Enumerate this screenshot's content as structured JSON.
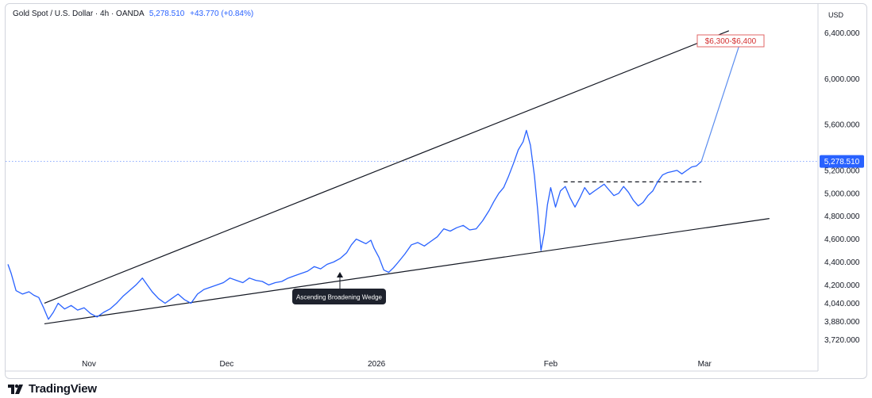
{
  "header": {
    "symbol": "Gold Spot / U.S. Dollar · 4h · OANDA",
    "last": "5,278.510",
    "change": "+43.770 (+0.84%)",
    "currency": "USD"
  },
  "footer": {
    "brand": "TradingView"
  },
  "chart_data": {
    "type": "line",
    "ylim": [
      3600,
      6550
    ],
    "x_ticks": [
      {
        "label": "Nov",
        "t": 0.1
      },
      {
        "label": "Dec",
        "t": 0.27
      },
      {
        "label": "2026",
        "t": 0.455
      },
      {
        "label": "Feb",
        "t": 0.67
      },
      {
        "label": "Mar",
        "t": 0.86
      }
    ],
    "y_ticks": [
      3720,
      3880,
      4040,
      4200,
      4400,
      4600,
      4800,
      5000,
      5200,
      5600,
      6000,
      6400
    ],
    "y_tick_labels": [
      "3,720.000",
      "3,880.000",
      "4,040.000",
      "4,200.000",
      "4,400.000",
      "4,600.000",
      "4,800.000",
      "5,000.000",
      "5,200.000",
      "5,600.000",
      "6,000.000",
      "6,400.000"
    ],
    "series": [
      {
        "color": "#2962ff",
        "points": [
          [
            0.0,
            4380
          ],
          [
            0.004,
            4300
          ],
          [
            0.01,
            4150
          ],
          [
            0.018,
            4120
          ],
          [
            0.026,
            4140
          ],
          [
            0.032,
            4110
          ],
          [
            0.038,
            4090
          ],
          [
            0.044,
            4000
          ],
          [
            0.05,
            3900
          ],
          [
            0.056,
            3960
          ],
          [
            0.062,
            4040
          ],
          [
            0.07,
            3990
          ],
          [
            0.078,
            4020
          ],
          [
            0.086,
            3980
          ],
          [
            0.094,
            4000
          ],
          [
            0.102,
            3950
          ],
          [
            0.11,
            3920
          ],
          [
            0.118,
            3960
          ],
          [
            0.126,
            3990
          ],
          [
            0.134,
            4040
          ],
          [
            0.142,
            4100
          ],
          [
            0.15,
            4150
          ],
          [
            0.158,
            4200
          ],
          [
            0.166,
            4260
          ],
          [
            0.172,
            4200
          ],
          [
            0.178,
            4140
          ],
          [
            0.186,
            4080
          ],
          [
            0.194,
            4040
          ],
          [
            0.202,
            4080
          ],
          [
            0.21,
            4120
          ],
          [
            0.218,
            4070
          ],
          [
            0.226,
            4040
          ],
          [
            0.234,
            4120
          ],
          [
            0.242,
            4160
          ],
          [
            0.25,
            4180
          ],
          [
            0.258,
            4200
          ],
          [
            0.266,
            4220
          ],
          [
            0.274,
            4260
          ],
          [
            0.282,
            4240
          ],
          [
            0.29,
            4220
          ],
          [
            0.298,
            4260
          ],
          [
            0.306,
            4240
          ],
          [
            0.314,
            4230
          ],
          [
            0.322,
            4200
          ],
          [
            0.33,
            4220
          ],
          [
            0.338,
            4230
          ],
          [
            0.346,
            4260
          ],
          [
            0.354,
            4280
          ],
          [
            0.362,
            4300
          ],
          [
            0.37,
            4320
          ],
          [
            0.378,
            4360
          ],
          [
            0.386,
            4340
          ],
          [
            0.394,
            4380
          ],
          [
            0.402,
            4400
          ],
          [
            0.41,
            4430
          ],
          [
            0.418,
            4480
          ],
          [
            0.424,
            4550
          ],
          [
            0.43,
            4600
          ],
          [
            0.436,
            4580
          ],
          [
            0.442,
            4560
          ],
          [
            0.448,
            4590
          ],
          [
            0.452,
            4520
          ],
          [
            0.458,
            4440
          ],
          [
            0.464,
            4330
          ],
          [
            0.47,
            4310
          ],
          [
            0.476,
            4350
          ],
          [
            0.482,
            4400
          ],
          [
            0.49,
            4470
          ],
          [
            0.498,
            4550
          ],
          [
            0.506,
            4570
          ],
          [
            0.514,
            4540
          ],
          [
            0.522,
            4580
          ],
          [
            0.53,
            4620
          ],
          [
            0.538,
            4690
          ],
          [
            0.546,
            4670
          ],
          [
            0.554,
            4700
          ],
          [
            0.562,
            4720
          ],
          [
            0.57,
            4680
          ],
          [
            0.578,
            4690
          ],
          [
            0.586,
            4760
          ],
          [
            0.594,
            4850
          ],
          [
            0.6,
            4930
          ],
          [
            0.606,
            5000
          ],
          [
            0.612,
            5050
          ],
          [
            0.618,
            5150
          ],
          [
            0.624,
            5260
          ],
          [
            0.63,
            5380
          ],
          [
            0.636,
            5450
          ],
          [
            0.64,
            5550
          ],
          [
            0.645,
            5420
          ],
          [
            0.65,
            5150
          ],
          [
            0.654,
            4850
          ],
          [
            0.658,
            4500
          ],
          [
            0.662,
            4650
          ],
          [
            0.666,
            4900
          ],
          [
            0.67,
            5050
          ],
          [
            0.676,
            4880
          ],
          [
            0.682,
            5020
          ],
          [
            0.688,
            5060
          ],
          [
            0.694,
            4960
          ],
          [
            0.7,
            4880
          ],
          [
            0.706,
            4960
          ],
          [
            0.712,
            5050
          ],
          [
            0.718,
            4990
          ],
          [
            0.724,
            5020
          ],
          [
            0.73,
            5050
          ],
          [
            0.736,
            5080
          ],
          [
            0.742,
            5030
          ],
          [
            0.748,
            4980
          ],
          [
            0.754,
            5000
          ],
          [
            0.76,
            5060
          ],
          [
            0.766,
            5010
          ],
          [
            0.772,
            4940
          ],
          [
            0.778,
            4890
          ],
          [
            0.784,
            4920
          ],
          [
            0.79,
            4980
          ],
          [
            0.796,
            5020
          ],
          [
            0.802,
            5100
          ],
          [
            0.808,
            5160
          ],
          [
            0.814,
            5180
          ],
          [
            0.82,
            5190
          ],
          [
            0.826,
            5200
          ],
          [
            0.832,
            5170
          ],
          [
            0.838,
            5200
          ],
          [
            0.844,
            5230
          ],
          [
            0.85,
            5240
          ],
          [
            0.856,
            5278
          ]
        ]
      }
    ],
    "trendlines": [
      {
        "from": [
          0.045,
          4040
        ],
        "to": [
          0.89,
          6420
        ],
        "color": "#131722"
      },
      {
        "from": [
          0.045,
          3860
        ],
        "to": [
          0.94,
          4780
        ],
        "color": "#131722"
      }
    ],
    "resistance_line": {
      "from": [
        0.686,
        5100
      ],
      "to": [
        0.856,
        5100
      ]
    },
    "projection": {
      "from": [
        0.856,
        5278
      ],
      "to": [
        0.905,
        6340
      ]
    },
    "last_price_line": 5278.51,
    "last_price_label": "5,278.510",
    "target_label": "$6,300-$6,400",
    "pattern_label": "Ascending Broadening Wedge"
  }
}
